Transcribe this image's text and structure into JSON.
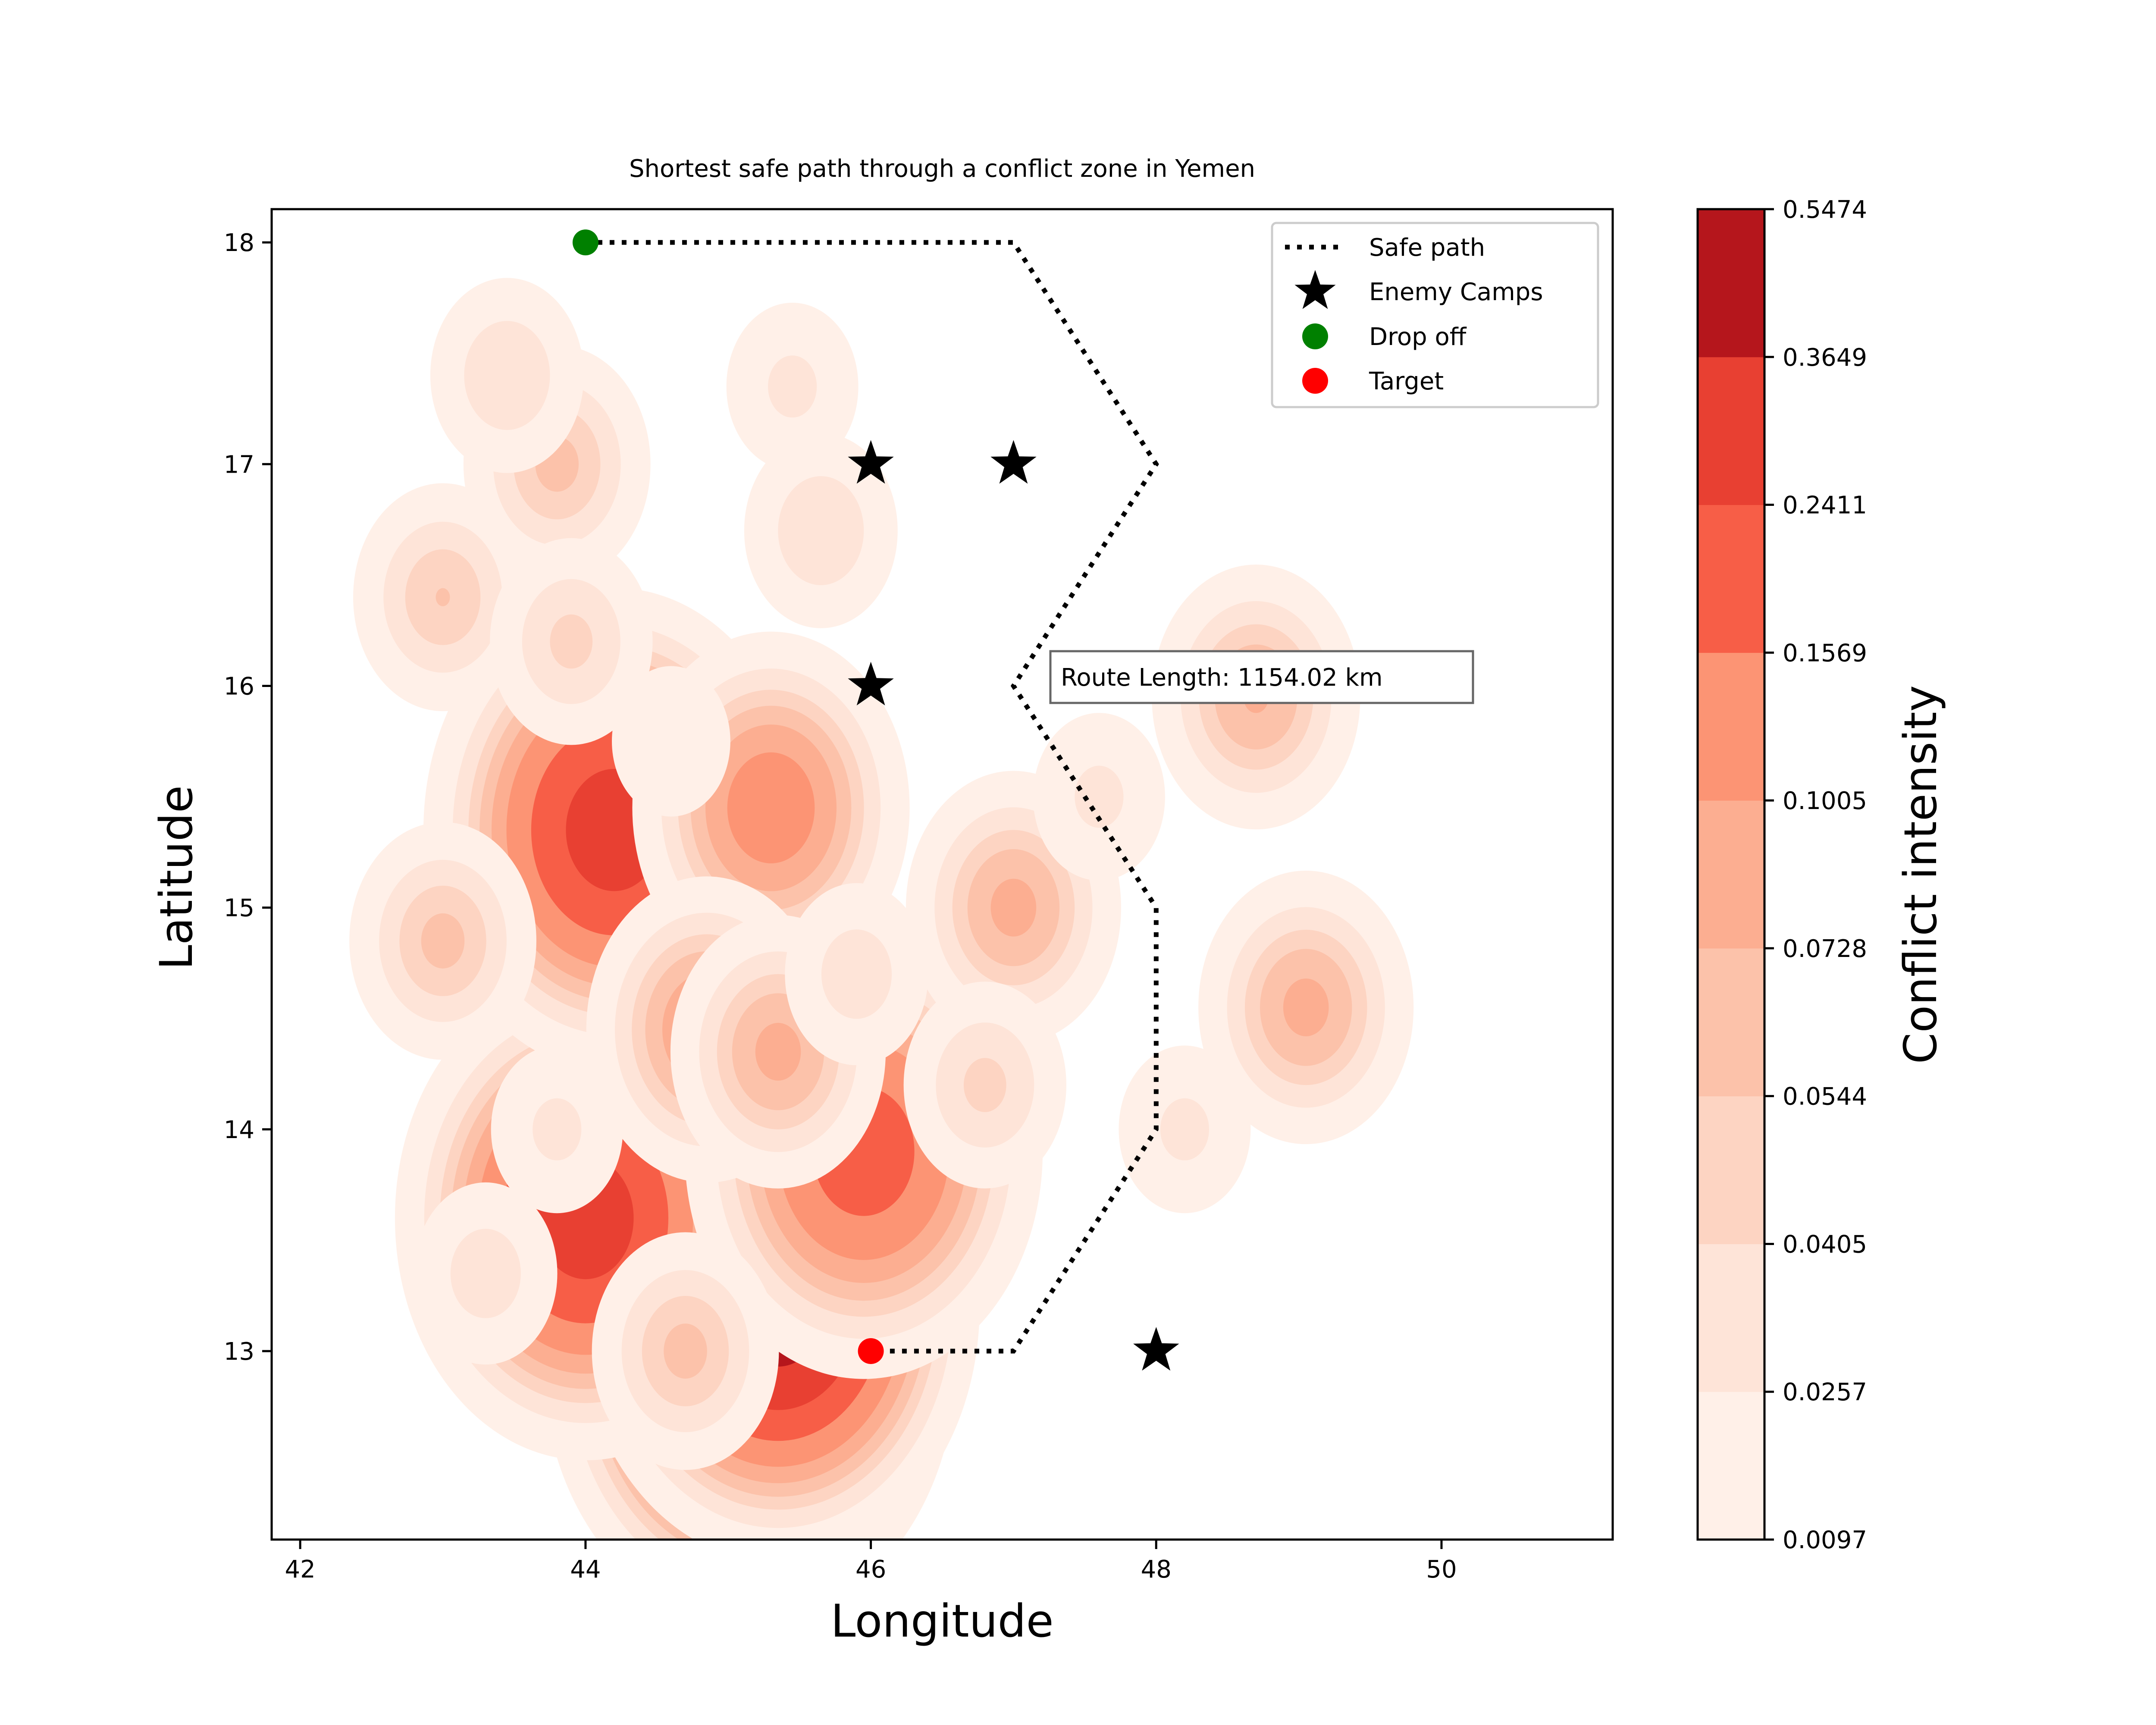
{
  "chart_data": {
    "type": "contour",
    "title": "Shortest safe path through a conflict zone in Yemen",
    "xlabel": "Longitude",
    "ylabel": "Latitude",
    "xlim": [
      41.8,
      51.2
    ],
    "ylim": [
      12.15,
      18.15
    ],
    "xticks": [
      42,
      44,
      46,
      48,
      50
    ],
    "yticks": [
      13,
      14,
      15,
      16,
      17,
      18
    ],
    "grid": false,
    "legend": {
      "location": "top-right",
      "entries": [
        {
          "label": "Safe path",
          "marker": "dotted-line",
          "color": "#000000"
        },
        {
          "label": "Enemy Camps",
          "marker": "star",
          "color": "#000000"
        },
        {
          "label": "Drop off",
          "marker": "circle",
          "color": "#008000"
        },
        {
          "label": "Target",
          "marker": "circle",
          "color": "#ff0000"
        }
      ]
    },
    "safe_path": {
      "name": "Safe path",
      "x": [
        44,
        47,
        48,
        47,
        48,
        48,
        47,
        46
      ],
      "y": [
        18,
        18,
        17,
        16,
        15,
        14,
        13,
        13
      ]
    },
    "enemy_camps": {
      "name": "Enemy Camps",
      "x": [
        46,
        47,
        46,
        48
      ],
      "y": [
        17,
        17,
        16,
        13
      ]
    },
    "drop_off": {
      "name": "Drop off",
      "x": 44,
      "y": 18
    },
    "target": {
      "name": "Target",
      "x": 46,
      "y": 13
    },
    "annotation": "Route Length: 1154.02 km",
    "annotation_anchor": {
      "x": 47.2,
      "y": 16.05
    },
    "density_hotspots": [
      {
        "x": 45.15,
        "y": 12.95,
        "peak": 0.55
      },
      {
        "x": 45.35,
        "y": 13.2,
        "peak": 0.45
      },
      {
        "x": 44.0,
        "y": 13.6,
        "peak": 0.3
      },
      {
        "x": 44.2,
        "y": 15.35,
        "peak": 0.3
      },
      {
        "x": 45.95,
        "y": 13.9,
        "peak": 0.2
      },
      {
        "x": 45.3,
        "y": 15.45,
        "peak": 0.13
      },
      {
        "x": 44.85,
        "y": 14.45,
        "peak": 0.1
      },
      {
        "x": 45.35,
        "y": 14.35,
        "peak": 0.08
      },
      {
        "x": 47.0,
        "y": 15.0,
        "peak": 0.08
      },
      {
        "x": 49.05,
        "y": 14.55,
        "peak": 0.08
      },
      {
        "x": 48.7,
        "y": 15.95,
        "peak": 0.075
      },
      {
        "x": 43.0,
        "y": 16.4,
        "peak": 0.055
      },
      {
        "x": 43.8,
        "y": 17.0,
        "peak": 0.06
      },
      {
        "x": 43.0,
        "y": 14.85,
        "peak": 0.06
      },
      {
        "x": 43.9,
        "y": 16.2,
        "peak": 0.045
      },
      {
        "x": 45.65,
        "y": 16.7,
        "peak": 0.04
      },
      {
        "x": 43.45,
        "y": 17.4,
        "peak": 0.04
      },
      {
        "x": 46.8,
        "y": 14.2,
        "peak": 0.045
      },
      {
        "x": 43.3,
        "y": 13.35,
        "peak": 0.035
      },
      {
        "x": 47.6,
        "y": 15.5,
        "peak": 0.03
      },
      {
        "x": 45.45,
        "y": 17.35,
        "peak": 0.03
      },
      {
        "x": 48.2,
        "y": 14.0,
        "peak": 0.03
      },
      {
        "x": 44.6,
        "y": 15.75,
        "peak": 0.025
      },
      {
        "x": 44.7,
        "y": 13.0,
        "peak": 0.06
      },
      {
        "x": 43.8,
        "y": 14.0,
        "peak": 0.03
      },
      {
        "x": 45.9,
        "y": 14.7,
        "peak": 0.035
      }
    ],
    "colorbar": {
      "label": "Conflict intensity",
      "levels": [
        0.0097,
        0.0257,
        0.0405,
        0.0544,
        0.0728,
        0.1005,
        0.1569,
        0.2411,
        0.3649,
        0.5474
      ],
      "tick_labels": [
        "0.0097",
        "0.0257",
        "0.0405",
        "0.0544",
        "0.0728",
        "0.1005",
        "0.1569",
        "0.2411",
        "0.3649",
        "0.5474"
      ],
      "colors": [
        "#fff0e8",
        "#fee4d8",
        "#fdd4c2",
        "#fcc2aa",
        "#fcae91",
        "#fc9474",
        "#f75e47",
        "#e84032",
        "#b5161c"
      ]
    }
  }
}
